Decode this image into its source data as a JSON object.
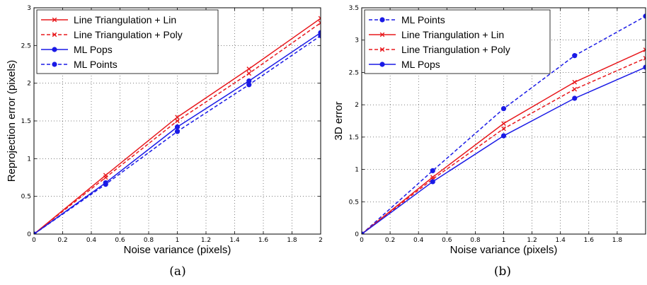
{
  "chart_data": [
    {
      "type": "line",
      "caption": "(a)",
      "xlabel": "Noise variance (pixels)",
      "ylabel": "Reprojection error (pixels)",
      "xlim": [
        0,
        2
      ],
      "ylim": [
        0,
        3
      ],
      "xticks": [
        "0",
        "0.2",
        "0.4",
        "0.6",
        "0.8",
        "1",
        "1.2",
        "1.4",
        "1.6",
        "1.8",
        "2"
      ],
      "yticks": [
        "0",
        "0.5",
        "1",
        "1.5",
        "2",
        "2.5",
        "3"
      ],
      "grid": true,
      "legend_position": "top-left",
      "series": [
        {
          "name": "Line Triangulation + Lin",
          "color": "#e8181c",
          "dash": "solid",
          "marker": "x",
          "x": [
            0,
            0.5,
            1,
            1.5,
            2
          ],
          "values": [
            0,
            0.78,
            1.55,
            2.19,
            2.86
          ]
        },
        {
          "name": "Line Triangulation + Poly",
          "color": "#e8181c",
          "dash": "dashed",
          "marker": "x",
          "x": [
            0,
            0.5,
            1,
            1.5,
            2
          ],
          "values": [
            0,
            0.75,
            1.5,
            2.13,
            2.8
          ]
        },
        {
          "name": "ML Pops",
          "color": "#1a1ae6",
          "dash": "solid",
          "marker": "dot",
          "x": [
            0,
            0.5,
            1,
            1.5,
            2
          ],
          "values": [
            0,
            0.68,
            1.42,
            2.03,
            2.67
          ]
        },
        {
          "name": "ML Points",
          "color": "#1a1ae6",
          "dash": "dashed",
          "marker": "dot",
          "x": [
            0,
            0.5,
            1,
            1.5,
            2
          ],
          "values": [
            0,
            0.66,
            1.36,
            1.98,
            2.63
          ]
        }
      ]
    },
    {
      "type": "line",
      "caption": "(b)",
      "xlabel": "Noise variance (pixels)",
      "ylabel": "3D error",
      "xlim": [
        0,
        2
      ],
      "ylim": [
        0,
        3.5
      ],
      "xticks": [
        "0",
        "0.2",
        "0.4",
        "0.6",
        "0.8",
        "1",
        "1.2",
        "1.4",
        "1.6",
        "1.8"
      ],
      "yticks": [
        "0",
        "0.5",
        "1",
        "1.5",
        "2",
        "2.5",
        "3",
        "3.5"
      ],
      "grid": true,
      "legend_position": "top-left",
      "series": [
        {
          "name": "ML Points",
          "color": "#1a1ae6",
          "dash": "dashed",
          "marker": "dot",
          "x": [
            0,
            0.5,
            1,
            1.5,
            2
          ],
          "values": [
            0,
            0.98,
            1.94,
            2.76,
            3.37
          ]
        },
        {
          "name": "Line Triangulation + Lin",
          "color": "#e8181c",
          "dash": "solid",
          "marker": "x",
          "x": [
            0,
            0.5,
            1,
            1.5,
            2
          ],
          "values": [
            0,
            0.88,
            1.71,
            2.35,
            2.85
          ]
        },
        {
          "name": "Line Triangulation + Poly",
          "color": "#e8181c",
          "dash": "dashed",
          "marker": "x",
          "x": [
            0,
            0.5,
            1,
            1.5,
            2
          ],
          "values": [
            0,
            0.85,
            1.63,
            2.24,
            2.72
          ]
        },
        {
          "name": "ML Pops",
          "color": "#1a1ae6",
          "dash": "solid",
          "marker": "dot",
          "x": [
            0,
            0.5,
            1,
            1.5,
            2
          ],
          "values": [
            0,
            0.81,
            1.52,
            2.1,
            2.58
          ]
        }
      ]
    }
  ]
}
